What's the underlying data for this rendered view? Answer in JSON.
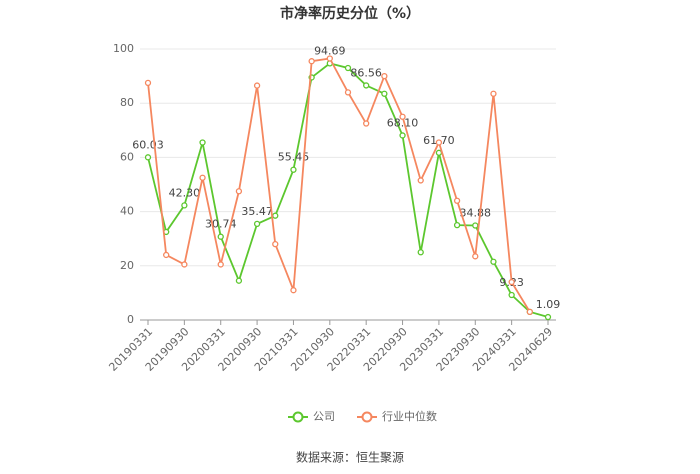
{
  "chart_data": {
    "type": "line",
    "title": "市净率历史分位（%）",
    "categories": [
      "20190331",
      null,
      "20190930",
      null,
      "20200331",
      null,
      "20200930",
      null,
      "20210331",
      null,
      "20210930",
      null,
      "20220331",
      null,
      "20220930",
      null,
      "20230331",
      null,
      "20230930",
      null,
      "20240331",
      null,
      "20240629"
    ],
    "series": [
      {
        "name": "公司",
        "color": "#5cc72e",
        "values": [
          60.03,
          32.5,
          42.3,
          65.5,
          30.74,
          14.5,
          35.47,
          38.5,
          55.45,
          89.5,
          94.69,
          93,
          86.56,
          83.5,
          68.1,
          25,
          61.7,
          35,
          34.88,
          21.5,
          9.23,
          3,
          1.09
        ],
        "value_labels": [
          "60.03",
          null,
          "42.30",
          null,
          "30.74",
          null,
          "35.47",
          null,
          "55.45",
          null,
          "94.69",
          null,
          "86.56",
          null,
          "68.10",
          null,
          "61.70",
          null,
          "34.88",
          null,
          "9.23",
          null,
          "1.09"
        ]
      },
      {
        "name": "行业中位数",
        "color": "#f5875f",
        "values": [
          87.5,
          24,
          20.5,
          52.5,
          20.5,
          47.5,
          86.5,
          28,
          11,
          95.5,
          96.5,
          84,
          72.5,
          90,
          75,
          51.5,
          65.5,
          44,
          23.5,
          83.5,
          14,
          3,
          null
        ]
      }
    ],
    "ylim": [
      0,
      100
    ],
    "yticks": [
      0,
      20,
      40,
      60,
      80,
      100
    ],
    "grid": true,
    "legend": "bottom",
    "source": "数据来源：恒生聚源"
  }
}
